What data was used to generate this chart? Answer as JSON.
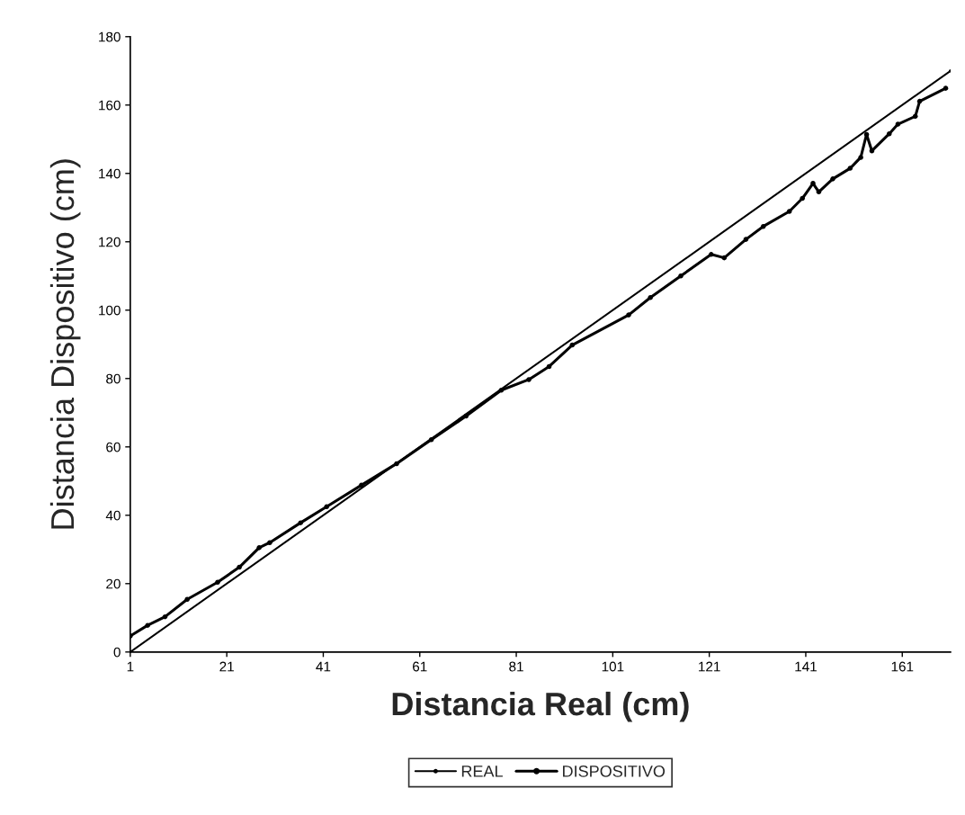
{
  "chart_data": {
    "type": "line",
    "xlabel": "Distancia Real (cm)",
    "ylabel": "Distancia Dispositivo (cm)",
    "xlim": [
      1,
      171
    ],
    "xticks": [
      1,
      21,
      41,
      61,
      81,
      101,
      121,
      141,
      161
    ],
    "ylim": [
      0,
      180
    ],
    "yticks": [
      0,
      20,
      40,
      60,
      80,
      100,
      120,
      140,
      160,
      180
    ],
    "grid": false,
    "legend": "bottom",
    "marker": "circle",
    "line_style": "solid",
    "series": [
      {
        "name": "REAL",
        "color": "#000000",
        "x": [
          1,
          171
        ],
        "values": [
          0,
          170
        ]
      },
      {
        "name": "DISPOSITIVO",
        "color": "#000000",
        "x": [
          1,
          4.6,
          8.2,
          12.8,
          19.1,
          23.6,
          27.7,
          29.9,
          36.3,
          41.7,
          48.9,
          56.2,
          63.4,
          70.6,
          77.9,
          83.6,
          87.8,
          92.6,
          104.3,
          108.8,
          115.1,
          121.4,
          124.1,
          128.6,
          132.2,
          137.6,
          140.3,
          142.5,
          143.7,
          146.6,
          150.2,
          152.4,
          153.6,
          154.7,
          158.3,
          160.1,
          163.7,
          164.6,
          170
        ],
        "values": [
          4.7,
          7.8,
          10.3,
          15.4,
          20.4,
          24.8,
          30.5,
          32,
          37.8,
          42.5,
          48.8,
          55.1,
          62.1,
          69,
          76.6,
          79.7,
          83.5,
          89.8,
          98.6,
          103.7,
          110,
          116.3,
          115.3,
          120.7,
          124.5,
          128.9,
          132.7,
          137.1,
          134.6,
          138.4,
          141.5,
          144.7,
          151.4,
          146.6,
          151.6,
          154.4,
          156.7,
          161.1,
          164.9
        ]
      }
    ]
  }
}
